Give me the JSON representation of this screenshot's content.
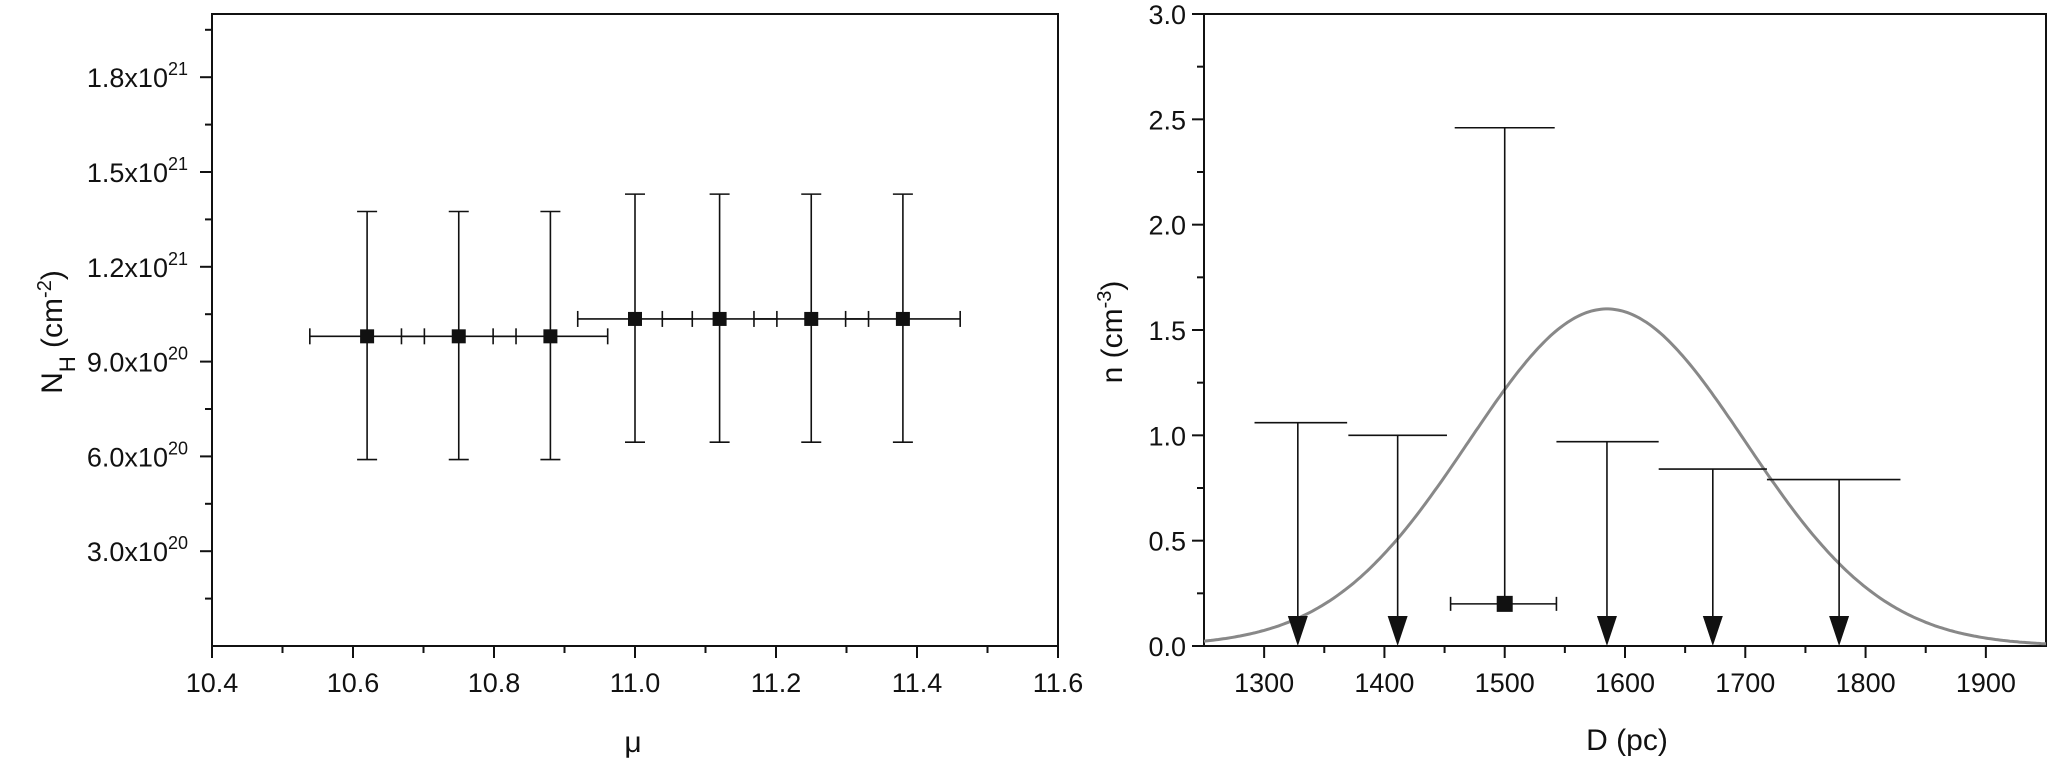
{
  "chart_data": [
    {
      "type": "scatter",
      "xlabel": "μ",
      "ylabel_main": "N",
      "ylabel_sub": "H",
      "ylabel_rest": " (cm",
      "ylabel_sup": "-2",
      "ylabel_close": ")",
      "xlim": [
        10.4,
        11.6
      ],
      "ylim": [
        0,
        2e+21
      ],
      "x_ticks": [
        {
          "value": 10.4,
          "label": "10.4"
        },
        {
          "value": 10.6,
          "label": "10.6"
        },
        {
          "value": 10.8,
          "label": "10.8"
        },
        {
          "value": 11.0,
          "label": "11.0"
        },
        {
          "value": 11.2,
          "label": "11.2"
        },
        {
          "value": 11.4,
          "label": "11.4"
        },
        {
          "value": 11.6,
          "label": "11.6"
        }
      ],
      "y_ticks": [
        {
          "value": 3e+20,
          "mantissa": "3.0x10",
          "exp": "20"
        },
        {
          "value": 6e+20,
          "mantissa": "6.0x10",
          "exp": "20"
        },
        {
          "value": 9e+20,
          "mantissa": "9.0x10",
          "exp": "20"
        },
        {
          "value": 1.2e+21,
          "mantissa": "1.2x10",
          "exp": "21"
        },
        {
          "value": 1.5e+21,
          "mantissa": "1.5x10",
          "exp": "21"
        },
        {
          "value": 1.8e+21,
          "mantissa": "1.8x10",
          "exp": "21"
        }
      ],
      "series": [
        {
          "points": [
            {
              "x": 10.62,
              "y": 9.8e+20,
              "x_err": 0.0625,
              "y_low": 5.9e+20,
              "y_high": 1.375e+21
            },
            {
              "x": 10.75,
              "y": 9.8e+20,
              "x_err": 0.0625,
              "y_low": 5.9e+20,
              "y_high": 1.375e+21
            },
            {
              "x": 10.88,
              "y": 9.8e+20,
              "x_err": 0.0625,
              "y_low": 5.9e+20,
              "y_high": 1.375e+21
            },
            {
              "x": 11.0,
              "y": 1.035e+21,
              "x_err": 0.0625,
              "y_low": 6.45e+20,
              "y_high": 1.43e+21
            },
            {
              "x": 11.12,
              "y": 1.035e+21,
              "x_err": 0.0625,
              "y_low": 6.45e+20,
              "y_high": 1.43e+21
            },
            {
              "x": 11.25,
              "y": 1.035e+21,
              "x_err": 0.0625,
              "y_low": 6.45e+20,
              "y_high": 1.43e+21
            },
            {
              "x": 11.38,
              "y": 1.035e+21,
              "x_err": 0.0625,
              "y_low": 6.45e+20,
              "y_high": 1.43e+21
            }
          ]
        }
      ]
    },
    {
      "type": "scatter",
      "xlabel": "D (pc)",
      "ylabel": "n (cm",
      "ylabel_sup": "-3",
      "ylabel_close": ")",
      "xlim": [
        1250,
        1950
      ],
      "ylim": [
        0,
        3.0
      ],
      "x_ticks": [
        "1300",
        "1400",
        "1500",
        "1600",
        "1700",
        "1800",
        "1900"
      ],
      "y_ticks": [
        "0.0",
        "0.5",
        "1.0",
        "1.5",
        "2.0",
        "2.5",
        "3.0"
      ],
      "curve": {
        "type": "gaussian",
        "center": 1585,
        "amplitude": 1.6,
        "sigma": 115,
        "color": "#888888"
      },
      "upper_limits": [
        {
          "x": 1328,
          "y": 1.06,
          "x_left": 1292,
          "x_right": 1369
        },
        {
          "x": 1411,
          "y": 1.0,
          "x_left": 1370,
          "x_right": 1452
        },
        {
          "x": 1585,
          "y": 0.97,
          "x_left": 1543,
          "x_right": 1628
        },
        {
          "x": 1673,
          "y": 0.84,
          "x_left": 1628,
          "x_right": 1718
        },
        {
          "x": 1778,
          "y": 0.79,
          "x_left": 1718,
          "x_right": 1829
        }
      ],
      "detection": {
        "x": 1500,
        "y": 0.2,
        "x_left": 1455,
        "x_right": 1543,
        "y_high": 2.46
      }
    }
  ]
}
